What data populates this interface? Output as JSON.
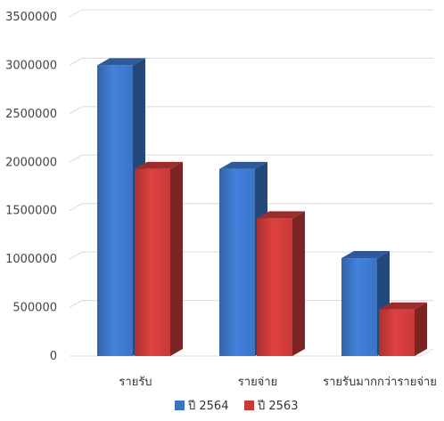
{
  "chart_data": {
    "type": "bar",
    "style": "3d-clustered-column",
    "categories": [
      "รายรับ",
      "รายจ่าย",
      "รายรับมากกว่ารายจ่าย"
    ],
    "series": [
      {
        "name": "ปี 2564",
        "values": [
          3000000,
          1930000,
          1010000
        ],
        "color": "#3b74c4"
      },
      {
        "name": "ปี 2563",
        "values": [
          1930000,
          1420000,
          480000
        ],
        "color": "#c73a38"
      }
    ],
    "ylim": [
      0,
      3500000
    ],
    "yticks": [
      "0",
      "500000",
      "1000000",
      "1500000",
      "2000000",
      "2500000",
      "3000000",
      "3500000"
    ],
    "ytick_values": [
      0,
      500000,
      1000000,
      1500000,
      2000000,
      2500000,
      3000000,
      3500000
    ],
    "grid": true,
    "legend_position": "bottom"
  }
}
